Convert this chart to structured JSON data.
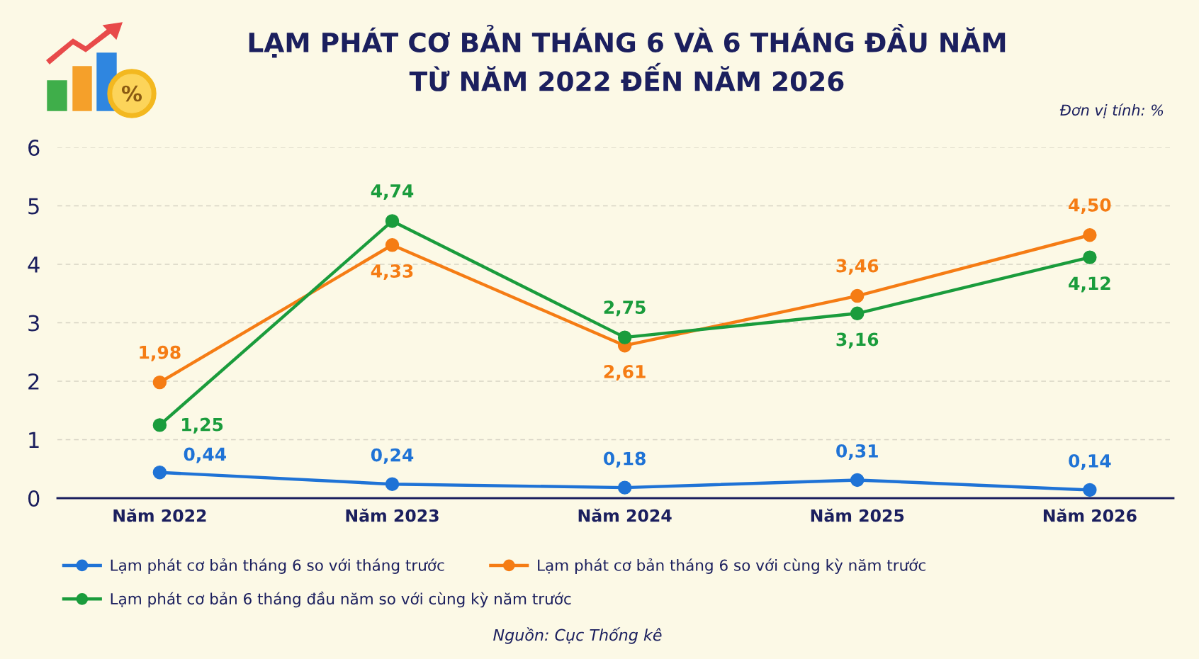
{
  "chart_data": {
    "type": "line",
    "title": "LẠM PHÁT CƠ BẢN THÁNG 6 VÀ 6 THÁNG ĐẦU NĂM\nTỪ NĂM 2022 ĐẾN NĂM 2026",
    "annotations": [
      "Đơn vị tính: %",
      "Nguồn: Cục Thống kê"
    ],
    "categories": [
      "Năm 2022",
      "Năm 2023",
      "Năm 2024",
      "Năm 2025",
      "Năm 2026"
    ],
    "series": [
      {
        "name": "Lạm phát cơ bản tháng 6 so với tháng trước",
        "color": "#1f73d6",
        "values": [
          0.44,
          0.24,
          0.18,
          0.31,
          0.14
        ],
        "value_labels": [
          "0,44",
          "0,24",
          "0,18",
          "0,31",
          "0,14"
        ]
      },
      {
        "name": "Lạm phát cơ bản tháng 6 so với cùng kỳ năm trước",
        "color": "#f57c14",
        "values": [
          1.98,
          4.33,
          2.61,
          3.46,
          4.5
        ],
        "value_labels": [
          "1,98",
          "4,33",
          "2,61",
          "3,46",
          "4,50"
        ]
      },
      {
        "name": "Lạm phát cơ bản 6 tháng đầu năm so với cùng kỳ năm trước",
        "color": "#1a9c3c",
        "values": [
          1.25,
          4.74,
          2.75,
          3.16,
          4.12
        ],
        "value_labels": [
          "1,25",
          "4,74",
          "2,75",
          "3,16",
          "4,12"
        ]
      }
    ],
    "ylim": [
      0,
      6
    ],
    "yticks": [
      0,
      1,
      2,
      3,
      4,
      5,
      6
    ],
    "grid": "y",
    "legend": "bottom",
    "marker": "circle",
    "line_style": "solid"
  }
}
